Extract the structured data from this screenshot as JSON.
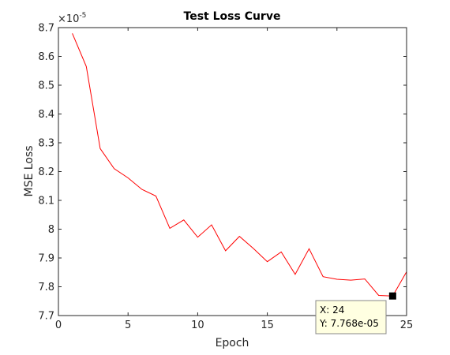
{
  "chart_data": {
    "type": "line",
    "title": "Test Loss Curve",
    "xlabel": "Epoch",
    "ylabel": "MSE Loss",
    "y_exponent_label": "×10",
    "y_exponent_power": "-5",
    "xlim": [
      0,
      25
    ],
    "ylim": [
      7.7,
      8.7
    ],
    "x_ticks": [
      0,
      5,
      10,
      15,
      20,
      25
    ],
    "x_tick_labels": [
      "0",
      "5",
      "10",
      "15",
      "20",
      "25"
    ],
    "y_ticks": [
      7.7,
      7.8,
      7.9,
      8.0,
      8.1,
      8.2,
      8.3,
      8.4,
      8.5,
      8.6,
      8.7
    ],
    "y_tick_labels": [
      "7.7",
      "7.8",
      "7.9",
      "8",
      "8.1",
      "8.2",
      "8.3",
      "8.4",
      "8.5",
      "8.6",
      "8.7"
    ],
    "grid": false,
    "line_color": "#ff0000",
    "series": [
      {
        "x": [
          1,
          2,
          3,
          4,
          5,
          6,
          7,
          8,
          9,
          10,
          11,
          12,
          13,
          14,
          15,
          16,
          17,
          18,
          19,
          20,
          21,
          22,
          23,
          24,
          25
        ],
        "values": [
          8.68,
          8.565,
          8.28,
          8.21,
          8.178,
          8.138,
          8.115,
          8.003,
          8.032,
          7.972,
          8.015,
          7.925,
          7.975,
          7.933,
          7.887,
          7.921,
          7.843,
          7.932,
          7.835,
          7.826,
          7.823,
          7.827,
          7.77,
          7.768,
          7.852
        ]
      }
    ],
    "datatip": {
      "x": 24,
      "y": 7.768,
      "x_text": "X: 24",
      "y_text": "Y: 7.768e-05",
      "background": "#ffffe1"
    }
  }
}
